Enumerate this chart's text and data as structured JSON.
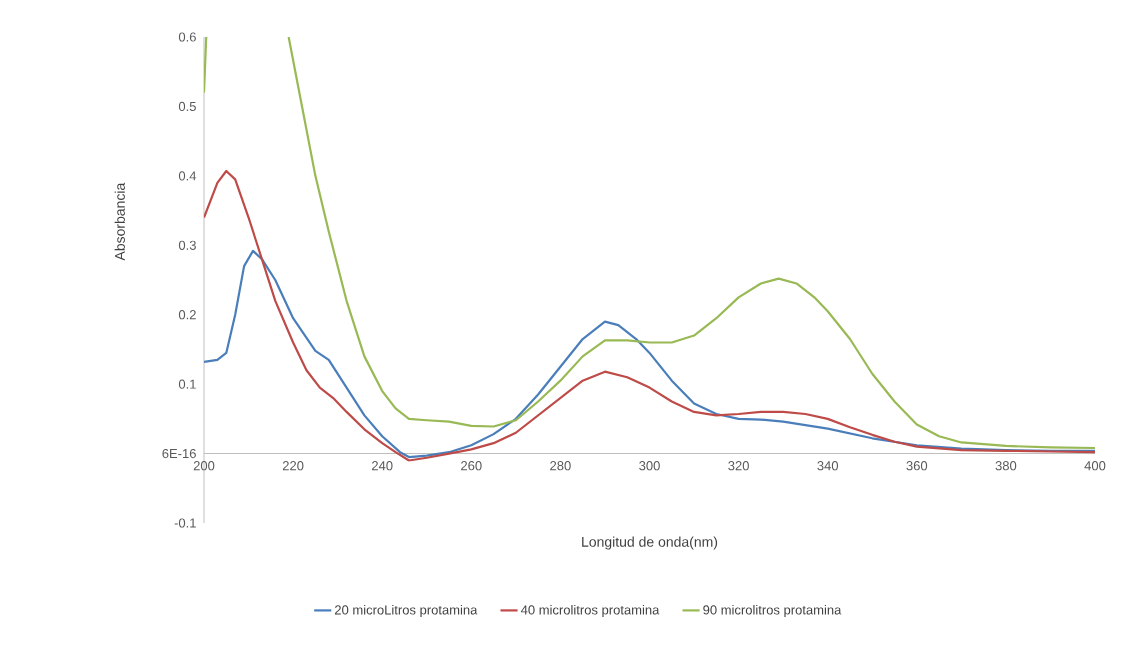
{
  "chart_data": {
    "type": "line",
    "xlabel": "Longitud de onda(nm)",
    "ylabel": "Absorbancia",
    "xlim": [
      200,
      400
    ],
    "ylim": [
      -0.1,
      0.6
    ],
    "xticks": [
      200,
      220,
      240,
      260,
      280,
      300,
      320,
      340,
      360,
      380,
      400
    ],
    "yticks": [
      -0.1,
      {
        "value": 0,
        "label": "6E-16"
      },
      0.1,
      0.2,
      0.3,
      0.4,
      0.5,
      0.6
    ],
    "grid": false,
    "legend": "bottom",
    "marker": "none",
    "line_style": "solid",
    "series": [
      {
        "name": "20 microLitros protamina",
        "color": "#4a7ebb",
        "x": [
          200,
          203,
          205,
          207,
          209,
          211,
          213,
          216,
          220,
          225,
          228,
          232,
          236,
          240,
          244,
          246,
          250,
          255,
          260,
          265,
          270,
          275,
          280,
          285,
          290,
          293,
          297,
          300,
          305,
          310,
          315,
          320,
          325,
          330,
          340,
          350,
          360,
          370,
          380,
          390,
          400
        ],
        "values": [
          0.132,
          0.135,
          0.145,
          0.2,
          0.27,
          0.292,
          0.28,
          0.25,
          0.195,
          0.148,
          0.135,
          0.095,
          0.055,
          0.025,
          0.002,
          -0.005,
          -0.003,
          0.002,
          0.012,
          0.028,
          0.05,
          0.085,
          0.125,
          0.165,
          0.19,
          0.185,
          0.165,
          0.145,
          0.105,
          0.072,
          0.057,
          0.05,
          0.049,
          0.046,
          0.036,
          0.022,
          0.012,
          0.007,
          0.005,
          0.004,
          0.004
        ]
      },
      {
        "name": "40 microlitros protamina",
        "color": "#be4b48",
        "x": [
          200,
          203,
          205,
          207,
          210,
          213,
          216,
          220,
          223,
          226,
          229,
          232,
          236,
          240,
          243,
          246,
          250,
          255,
          260,
          265,
          270,
          275,
          280,
          285,
          290,
          295,
          300,
          305,
          310,
          315,
          320,
          325,
          330,
          335,
          340,
          345,
          350,
          355,
          360,
          370,
          380,
          390,
          400
        ],
        "values": [
          0.34,
          0.39,
          0.407,
          0.395,
          0.34,
          0.28,
          0.22,
          0.16,
          0.12,
          0.095,
          0.08,
          0.06,
          0.035,
          0.015,
          0.002,
          -0.01,
          -0.006,
          0.0,
          0.006,
          0.015,
          0.03,
          0.055,
          0.08,
          0.105,
          0.118,
          0.11,
          0.095,
          0.075,
          0.06,
          0.055,
          0.057,
          0.06,
          0.06,
          0.057,
          0.05,
          0.038,
          0.027,
          0.017,
          0.01,
          0.005,
          0.004,
          0.003,
          0.002
        ]
      },
      {
        "name": "90 microlitros protamina",
        "color": "#98b954",
        "x": [
          200,
          200.5,
          210,
          219,
          222,
          225,
          228,
          232,
          236,
          240,
          243,
          246,
          250,
          255,
          260,
          265,
          270,
          275,
          280,
          285,
          290,
          295,
          300,
          305,
          310,
          315,
          320,
          325,
          329,
          333,
          337,
          340,
          345,
          350,
          355,
          360,
          365,
          370,
          380,
          390,
          400
        ],
        "values": [
          0.52,
          0.6,
          null,
          0.6,
          0.5,
          0.4,
          0.32,
          0.22,
          0.14,
          0.09,
          0.065,
          0.05,
          0.048,
          0.046,
          0.04,
          0.039,
          0.048,
          0.075,
          0.105,
          0.14,
          0.163,
          0.163,
          0.16,
          0.16,
          0.17,
          0.195,
          0.225,
          0.245,
          0.252,
          0.245,
          0.225,
          0.205,
          0.165,
          0.115,
          0.075,
          0.042,
          0.025,
          0.016,
          0.011,
          0.009,
          0.008
        ]
      }
    ]
  }
}
